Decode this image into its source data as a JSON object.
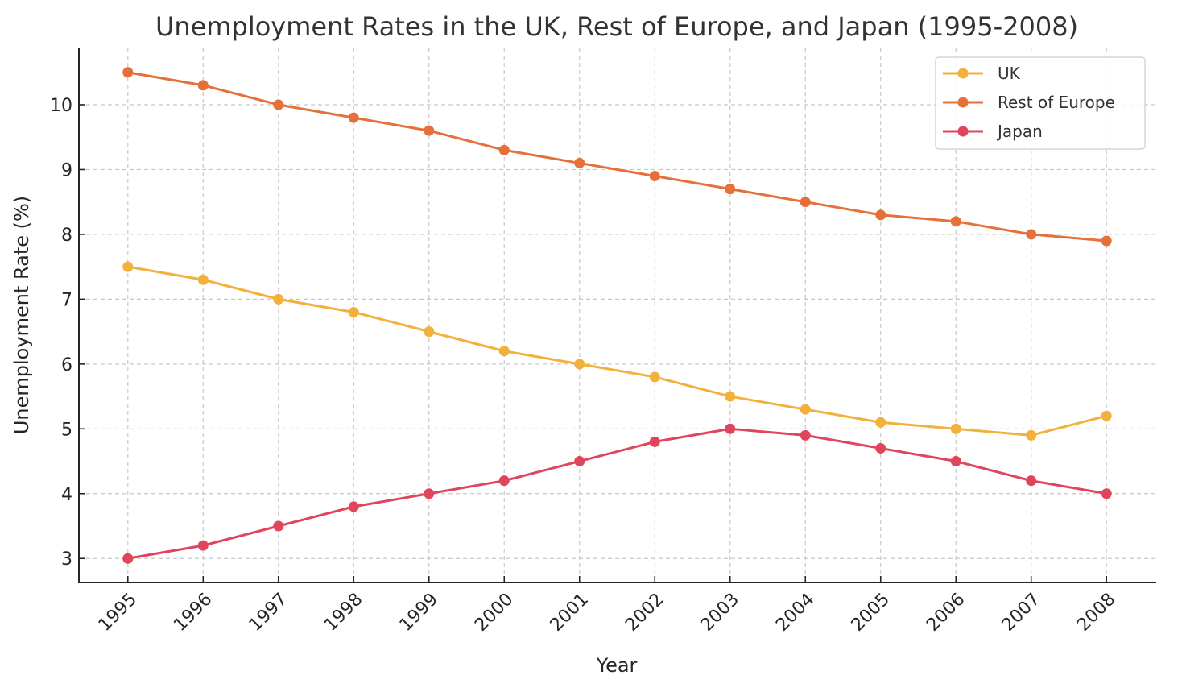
{
  "chart_data": {
    "type": "line",
    "title": "Unemployment Rates in the UK, Rest of Europe, and Japan (1995-2008)",
    "xlabel": "Year",
    "ylabel": "Unemployment Rate (%)",
    "x": [
      1995,
      1996,
      1997,
      1998,
      1999,
      2000,
      2001,
      2002,
      2003,
      2004,
      2005,
      2006,
      2007,
      2008
    ],
    "x_tick_labels": [
      "1995",
      "1996",
      "1997",
      "1998",
      "1999",
      "2000",
      "2001",
      "2002",
      "2003",
      "2004",
      "2005",
      "2006",
      "2007",
      "2008"
    ],
    "y_ticks": [
      3,
      4,
      5,
      6,
      7,
      8,
      9,
      10
    ],
    "y_tick_labels": [
      "3",
      "4",
      "5",
      "6",
      "7",
      "8",
      "9",
      "10"
    ],
    "xlim": [
      1994.35,
      2008.65
    ],
    "ylim": [
      2.63,
      10.87
    ],
    "grid": true,
    "legend_position": "top-right",
    "series": [
      {
        "name": "UK",
        "color": "#f2b03d",
        "values": [
          7.5,
          7.3,
          7.0,
          6.8,
          6.5,
          6.2,
          6.0,
          5.8,
          5.5,
          5.3,
          5.1,
          5.0,
          4.9,
          5.2
        ]
      },
      {
        "name": "Rest of Europe",
        "color": "#e5703a",
        "values": [
          10.5,
          10.3,
          10.0,
          9.8,
          9.6,
          9.3,
          9.1,
          8.9,
          8.7,
          8.5,
          8.3,
          8.2,
          8.0,
          7.9
        ]
      },
      {
        "name": "Japan",
        "color": "#e0455b",
        "values": [
          3.0,
          3.2,
          3.5,
          3.8,
          4.0,
          4.2,
          4.5,
          4.8,
          5.0,
          4.9,
          4.7,
          4.5,
          4.2,
          4.0
        ]
      }
    ]
  }
}
